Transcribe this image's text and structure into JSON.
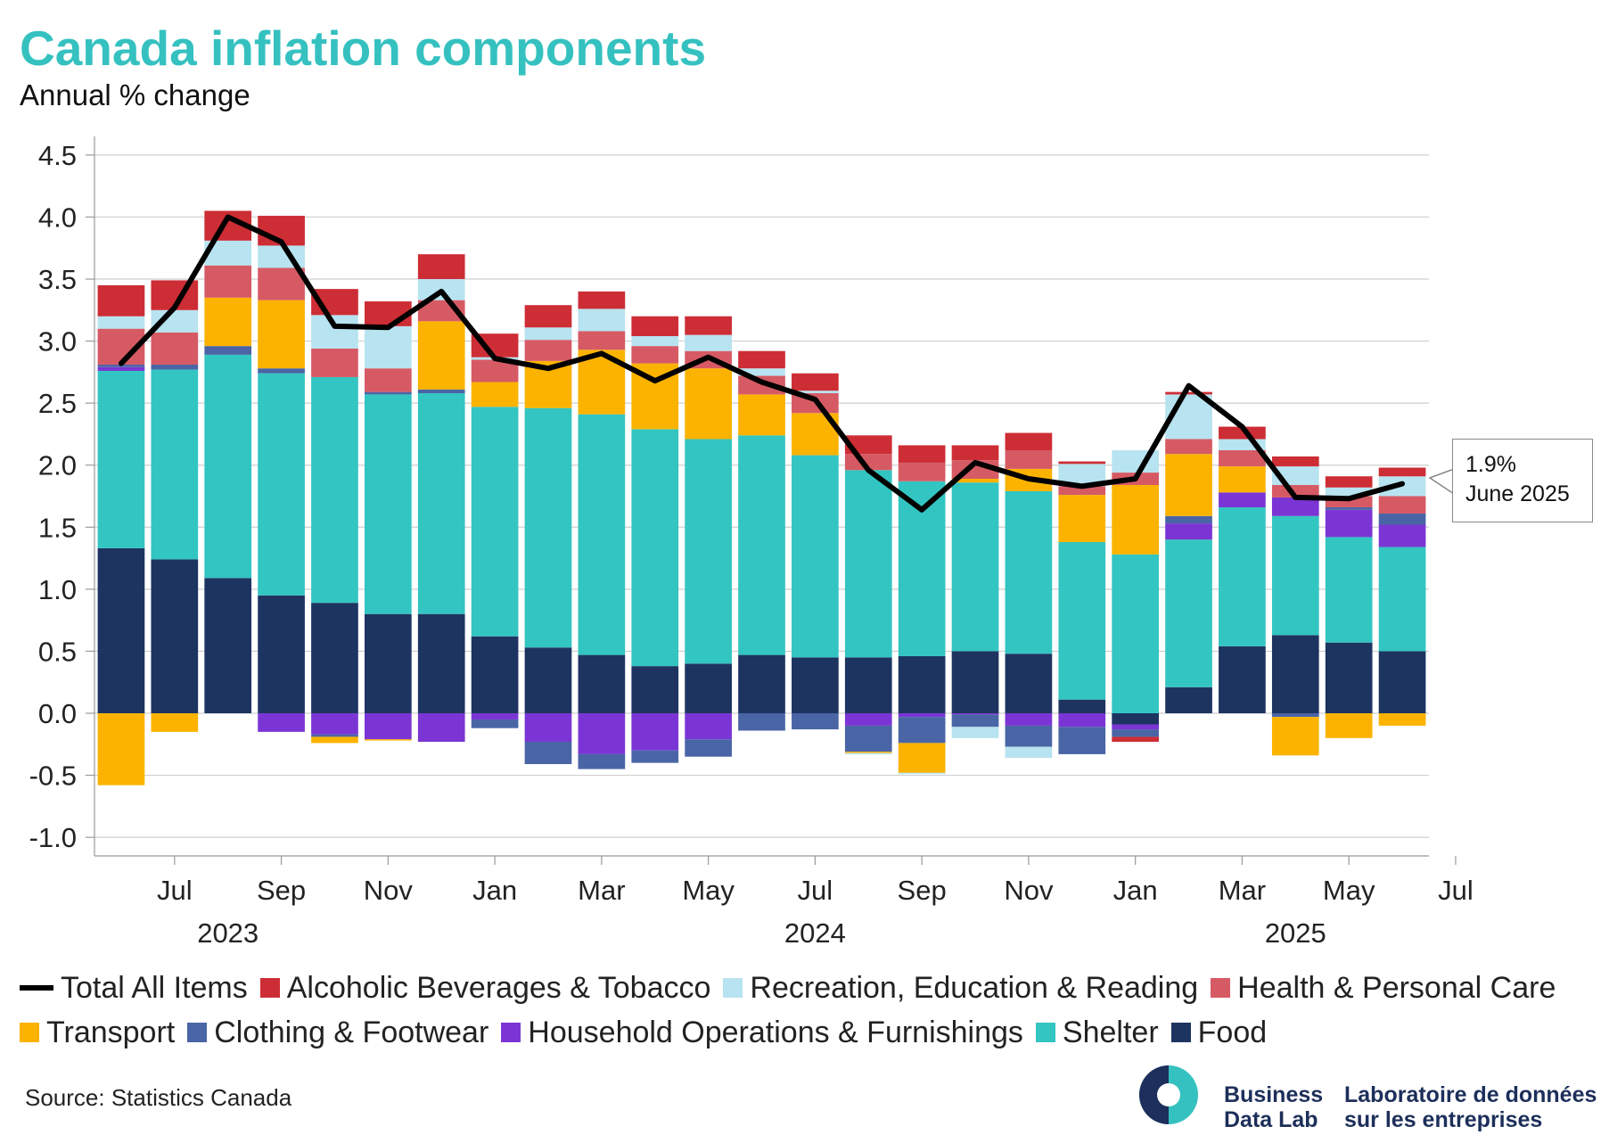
{
  "title": "Canada inflation components",
  "subtitle": "Annual % change",
  "source": "Source: Statistics Canada",
  "logo": {
    "en": [
      "Business",
      "Data Lab"
    ],
    "fr": [
      "Laboratoire de données",
      "sur les entreprises"
    ]
  },
  "callout": {
    "value": "1.9%",
    "date": "June 2025"
  },
  "chart_data": {
    "type": "bar",
    "stacked": true,
    "overlay_line": "Total All Items",
    "months": [
      "2023-06",
      "2023-07",
      "2023-08",
      "2023-09",
      "2023-10",
      "2023-11",
      "2023-12",
      "2024-01",
      "2024-02",
      "2024-03",
      "2024-04",
      "2024-05",
      "2024-06",
      "2024-07",
      "2024-08",
      "2024-09",
      "2024-10",
      "2024-11",
      "2024-12",
      "2025-01",
      "2025-02",
      "2025-03",
      "2025-04",
      "2025-05",
      "2025-06"
    ],
    "x_tick_labels": [
      "Jul",
      "Sep",
      "Nov",
      "Jan",
      "Mar",
      "May",
      "Jul",
      "Sep",
      "Nov",
      "Jan",
      "Mar",
      "May",
      "Jul"
    ],
    "year_labels": [
      "2023",
      "2024",
      "2025"
    ],
    "y_ticks": [
      "4.5",
      "4.0",
      "3.5",
      "3.0",
      "2.5",
      "2.0",
      "1.5",
      "1.0",
      "0.5",
      "0.0",
      "-0.5",
      "-1.0"
    ],
    "ylim": [
      -1.15,
      4.65
    ],
    "grid": true,
    "legend_position": "bottom",
    "series": [
      {
        "name": "Food",
        "color": "#1d3461",
        "values": [
          1.33,
          1.24,
          1.09,
          0.95,
          0.89,
          0.8,
          0.8,
          0.62,
          0.53,
          0.47,
          0.38,
          0.4,
          0.47,
          0.45,
          0.45,
          0.46,
          0.5,
          0.48,
          0.11,
          -0.09,
          0.21,
          0.54,
          0.63,
          0.57,
          0.5
        ]
      },
      {
        "name": "Shelter",
        "color": "#33c5c1",
        "values": [
          1.43,
          1.53,
          1.8,
          1.79,
          1.82,
          1.77,
          1.78,
          1.85,
          1.93,
          1.94,
          1.91,
          1.81,
          1.77,
          1.63,
          1.51,
          1.41,
          1.36,
          1.31,
          1.27,
          1.28,
          1.19,
          1.12,
          0.96,
          0.85,
          0.84
        ]
      },
      {
        "name": "Household Operations & Furnishings",
        "color": "#7b35d4",
        "values": [
          0.03,
          0.0,
          0.0,
          -0.15,
          -0.17,
          -0.21,
          -0.23,
          -0.05,
          -0.23,
          -0.33,
          -0.3,
          -0.21,
          0.0,
          0.0,
          -0.1,
          -0.03,
          -0.01,
          -0.1,
          -0.11,
          -0.04,
          0.13,
          0.12,
          0.15,
          0.22,
          0.18
        ]
      },
      {
        "name": "Clothing & Footwear",
        "color": "#4a65a6",
        "values": [
          0.02,
          0.04,
          0.07,
          0.04,
          -0.02,
          0.02,
          0.03,
          -0.07,
          -0.18,
          -0.12,
          -0.1,
          -0.14,
          -0.14,
          -0.13,
          -0.21,
          -0.21,
          -0.1,
          -0.17,
          -0.22,
          -0.06,
          0.06,
          0.0,
          -0.03,
          0.02,
          0.09
        ]
      },
      {
        "name": "Transport",
        "color": "#fbb300",
        "values": [
          -0.58,
          -0.15,
          0.39,
          0.55,
          -0.05,
          -0.01,
          0.55,
          0.2,
          0.38,
          0.52,
          0.53,
          0.57,
          0.33,
          0.34,
          -0.01,
          -0.24,
          0.03,
          0.18,
          0.38,
          0.56,
          0.5,
          0.21,
          -0.31,
          -0.2,
          -0.1
        ]
      },
      {
        "name": "Health & Personal Care",
        "color": "#d65a64",
        "values": [
          0.29,
          0.26,
          0.26,
          0.26,
          0.23,
          0.19,
          0.17,
          0.18,
          0.17,
          0.15,
          0.14,
          0.14,
          0.15,
          0.16,
          0.13,
          0.15,
          0.15,
          0.15,
          0.07,
          0.1,
          0.12,
          0.13,
          0.1,
          0.09,
          0.14
        ]
      },
      {
        "name": "Recreation, Education & Reading",
        "color": "#b8e3f0",
        "values": [
          0.1,
          0.18,
          0.2,
          0.18,
          0.27,
          0.34,
          0.17,
          0.02,
          0.1,
          0.18,
          0.08,
          0.13,
          0.06,
          0.02,
          -0.01,
          -0.01,
          -0.09,
          -0.09,
          0.18,
          0.18,
          0.36,
          0.09,
          0.15,
          0.07,
          0.16
        ]
      },
      {
        "name": "Alcoholic Beverages & Tobacco",
        "color": "#cd2d35",
        "values": [
          0.25,
          0.24,
          0.24,
          0.24,
          0.21,
          0.2,
          0.2,
          0.19,
          0.18,
          0.14,
          0.16,
          0.15,
          0.14,
          0.14,
          0.15,
          0.14,
          0.12,
          0.14,
          0.02,
          -0.04,
          0.02,
          0.1,
          0.08,
          0.09,
          0.07
        ]
      }
    ],
    "total": {
      "name": "Total All Items",
      "color": "#000000",
      "values": [
        2.82,
        3.27,
        4.0,
        3.8,
        3.12,
        3.11,
        3.4,
        2.86,
        2.78,
        2.9,
        2.68,
        2.87,
        2.67,
        2.53,
        1.96,
        1.64,
        2.02,
        1.89,
        1.83,
        1.89,
        2.64,
        2.31,
        1.74,
        1.73,
        1.85
      ]
    }
  },
  "legend_rows": [
    [
      "Total All Items",
      "Alcoholic Beverages & Tobacco",
      "Recreation, Education & Reading",
      "Health & Personal Care"
    ],
    [
      "Transport",
      "Clothing & Footwear",
      "Household Operations & Furnishings",
      "Shelter",
      "Food"
    ]
  ]
}
